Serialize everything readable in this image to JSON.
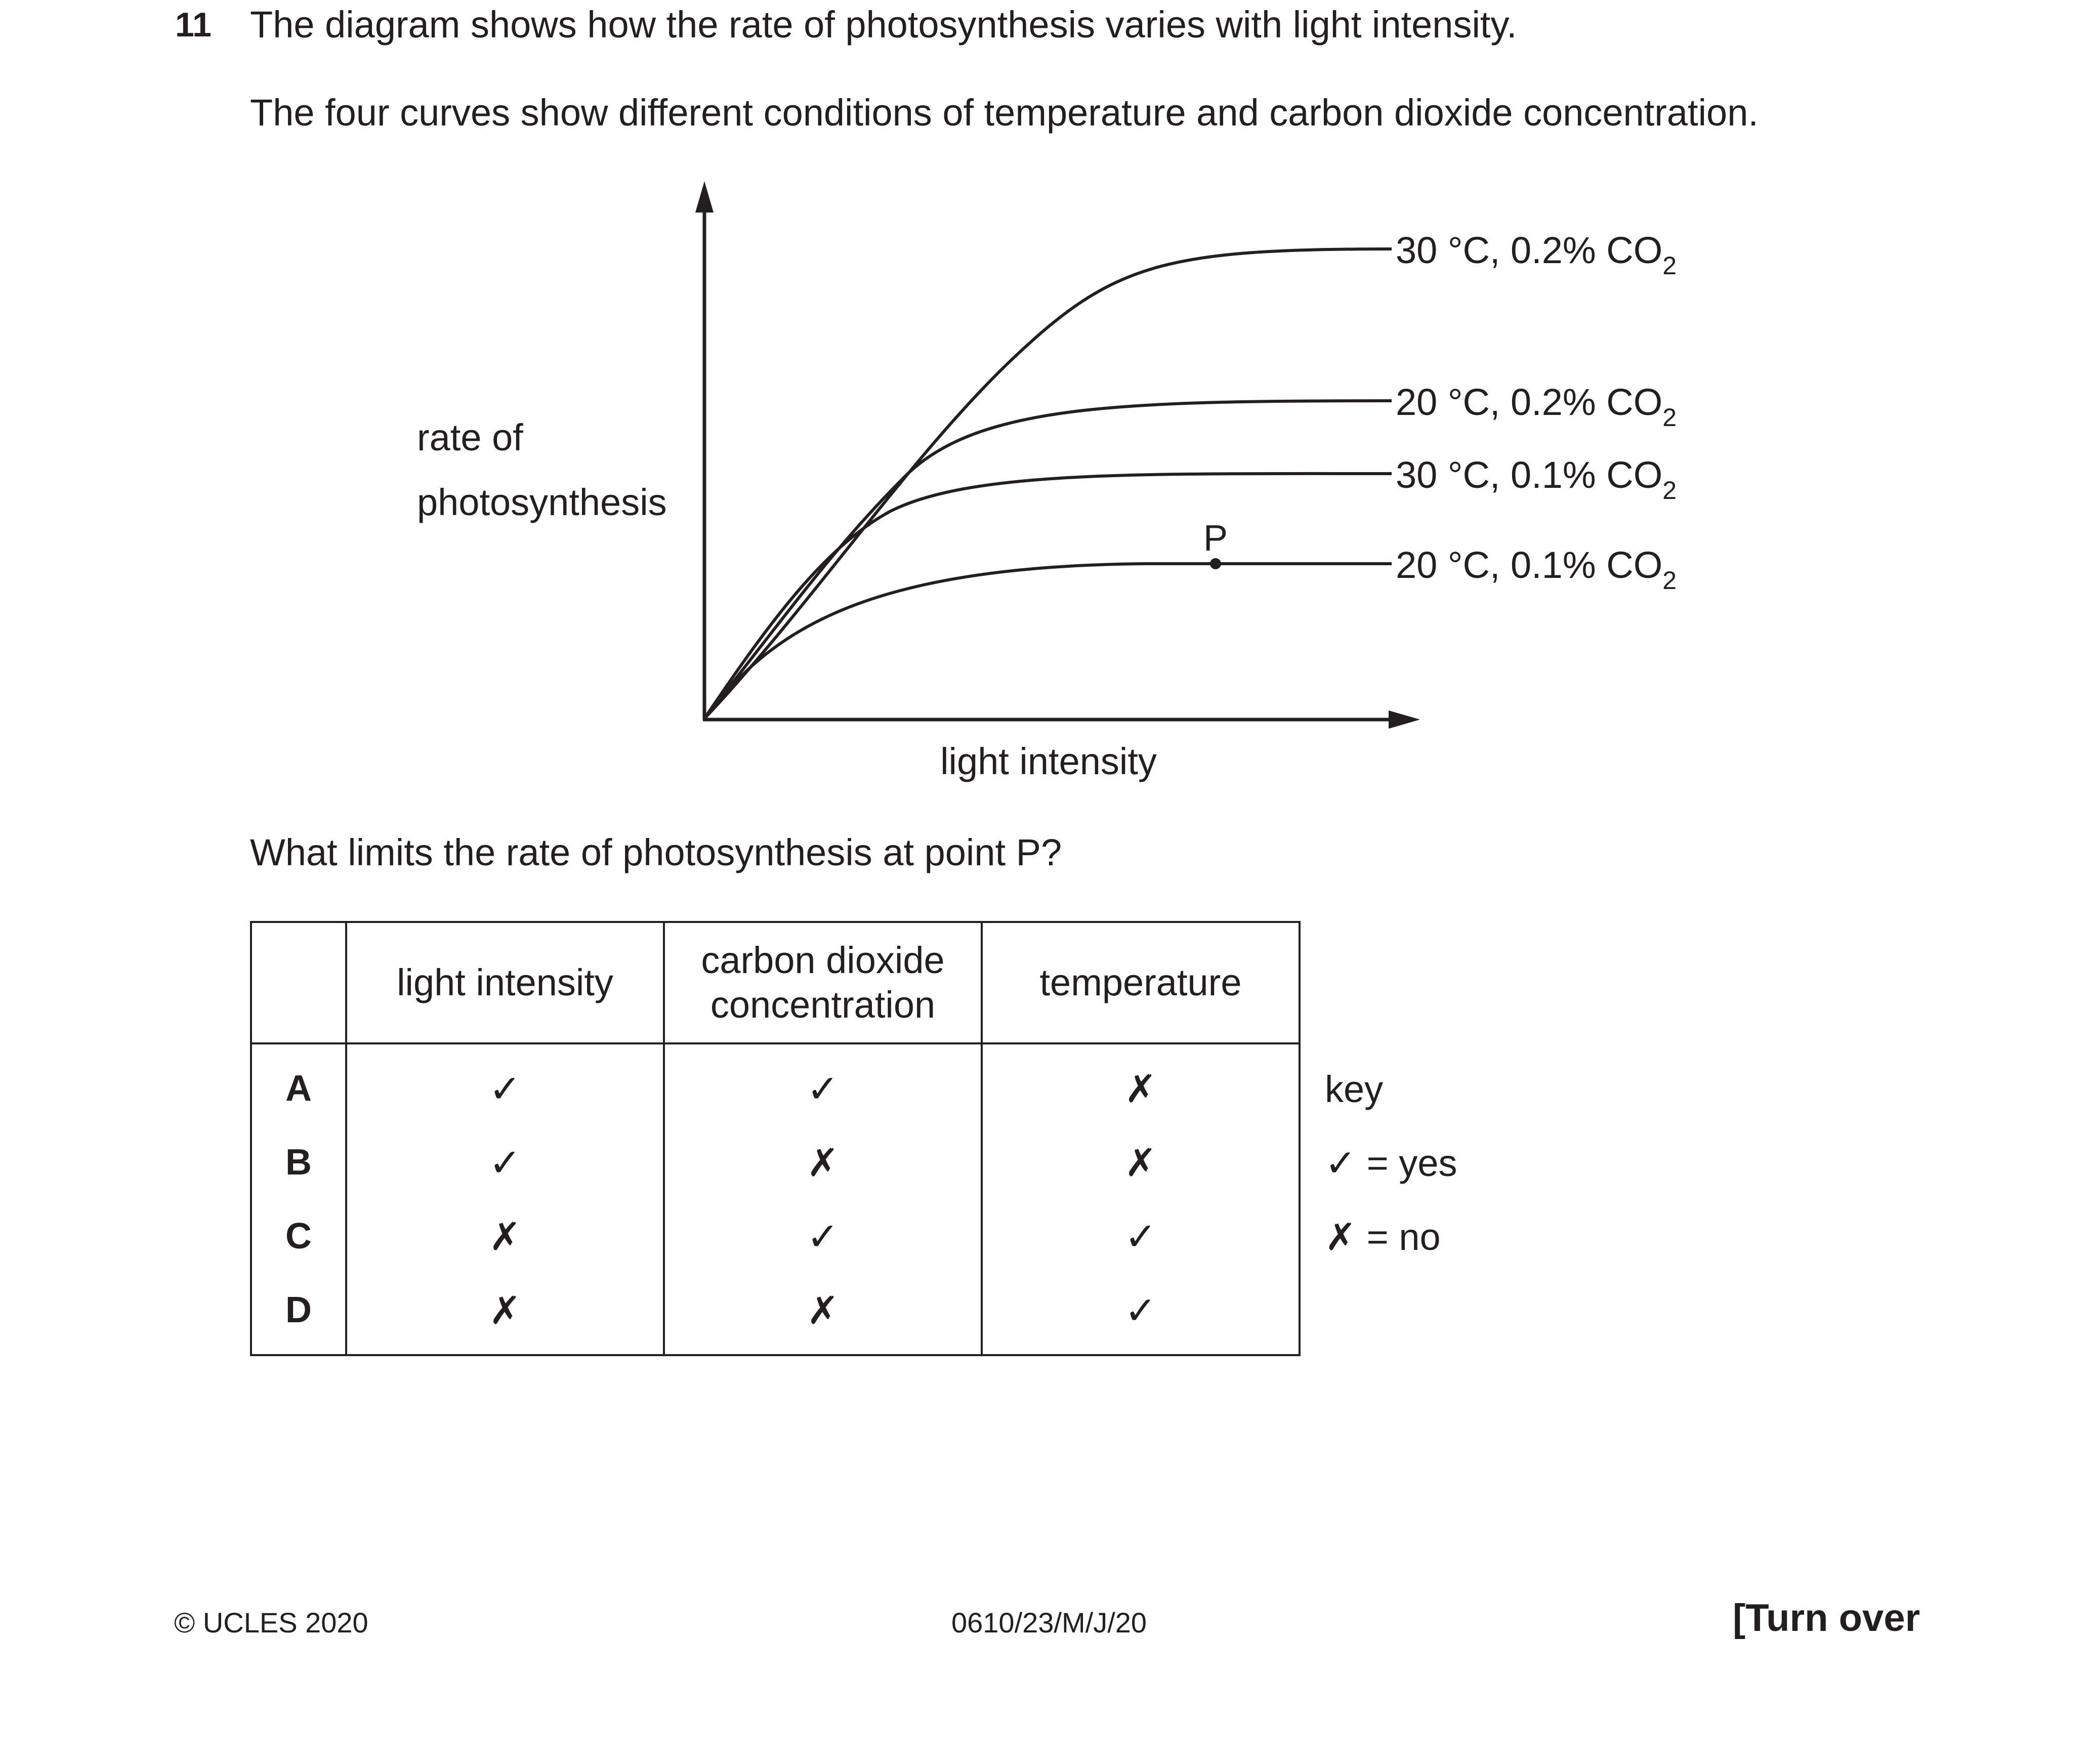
{
  "question": {
    "number": "11",
    "line1": "The diagram shows how the rate of photosynthesis varies with light intensity.",
    "line2": "The four curves show different conditions of temperature and carbon dioxide concentration.",
    "prompt": "What limits the rate of photosynthesis at point P?"
  },
  "graph": {
    "y_axis_label_line1": "rate of",
    "y_axis_label_line2": "photosynthesis",
    "x_axis_label": "light intensity",
    "point_label": "P",
    "curves": [
      {
        "label": "30 °C, 0.2% CO",
        "subscript": "2"
      },
      {
        "label": "20 °C, 0.2% CO",
        "subscript": "2"
      },
      {
        "label": "30 °C, 0.1% CO",
        "subscript": "2"
      },
      {
        "label": "20 °C, 0.1% CO",
        "subscript": "2"
      }
    ]
  },
  "table": {
    "headers": {
      "col1": "light intensity",
      "col2_line1": "carbon dioxide",
      "col2_line2": "concentration",
      "col3": "temperature"
    },
    "rows": [
      {
        "letter": "A",
        "c1": "✓",
        "c2": "✓",
        "c3": "✗"
      },
      {
        "letter": "B",
        "c1": "✓",
        "c2": "✗",
        "c3": "✗"
      },
      {
        "letter": "C",
        "c1": "✗",
        "c2": "✓",
        "c3": "✓"
      },
      {
        "letter": "D",
        "c1": "✗",
        "c2": "✗",
        "c3": "✓"
      }
    ]
  },
  "key": {
    "title": "key",
    "yes": "✓ = yes",
    "no": "✗ = no"
  },
  "footer": {
    "copyright": "© UCLES 2020",
    "code": "0610/23/M/J/20",
    "turn_over": "[Turn over"
  }
}
